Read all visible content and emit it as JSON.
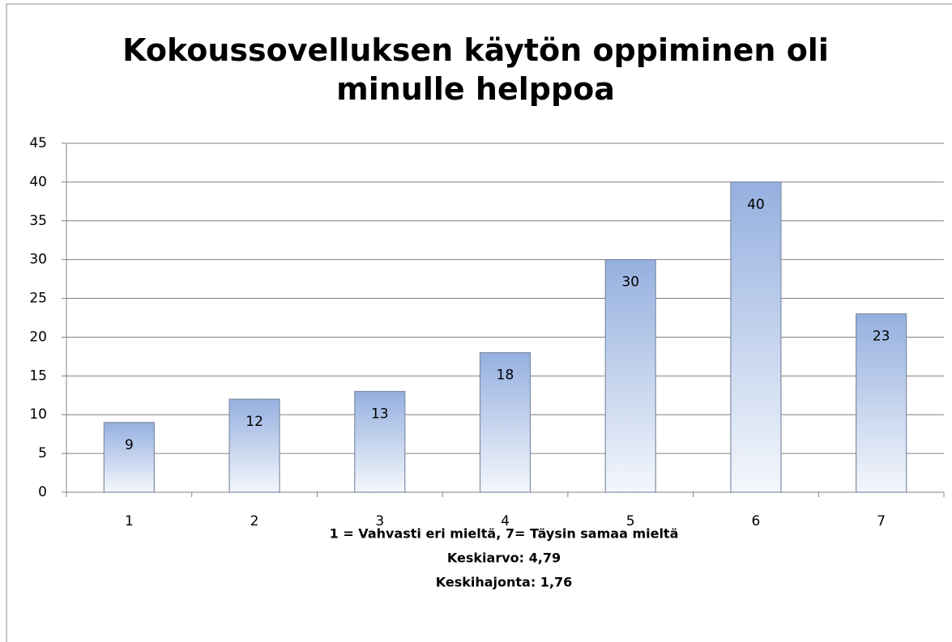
{
  "chart_data": {
    "type": "bar",
    "title": "Kokoussovelluksen käytön oppiminen oli minulle helppoa",
    "x_label": "1 = Vahvasti eri mieltä, 7= Täysin samaa mieltä",
    "annotations": [
      "Keskiarvo: 4,79",
      "Keskihajonta: 1,76"
    ],
    "categories": [
      "1",
      "2",
      "3",
      "4",
      "5",
      "6",
      "7"
    ],
    "values": [
      9,
      12,
      13,
      18,
      30,
      40,
      23
    ],
    "color": "#95b0df",
    "ylim": [
      0,
      45
    ],
    "yticks": [
      0,
      5,
      10,
      15,
      20,
      25,
      30,
      35,
      40,
      45
    ],
    "grid": true
  }
}
